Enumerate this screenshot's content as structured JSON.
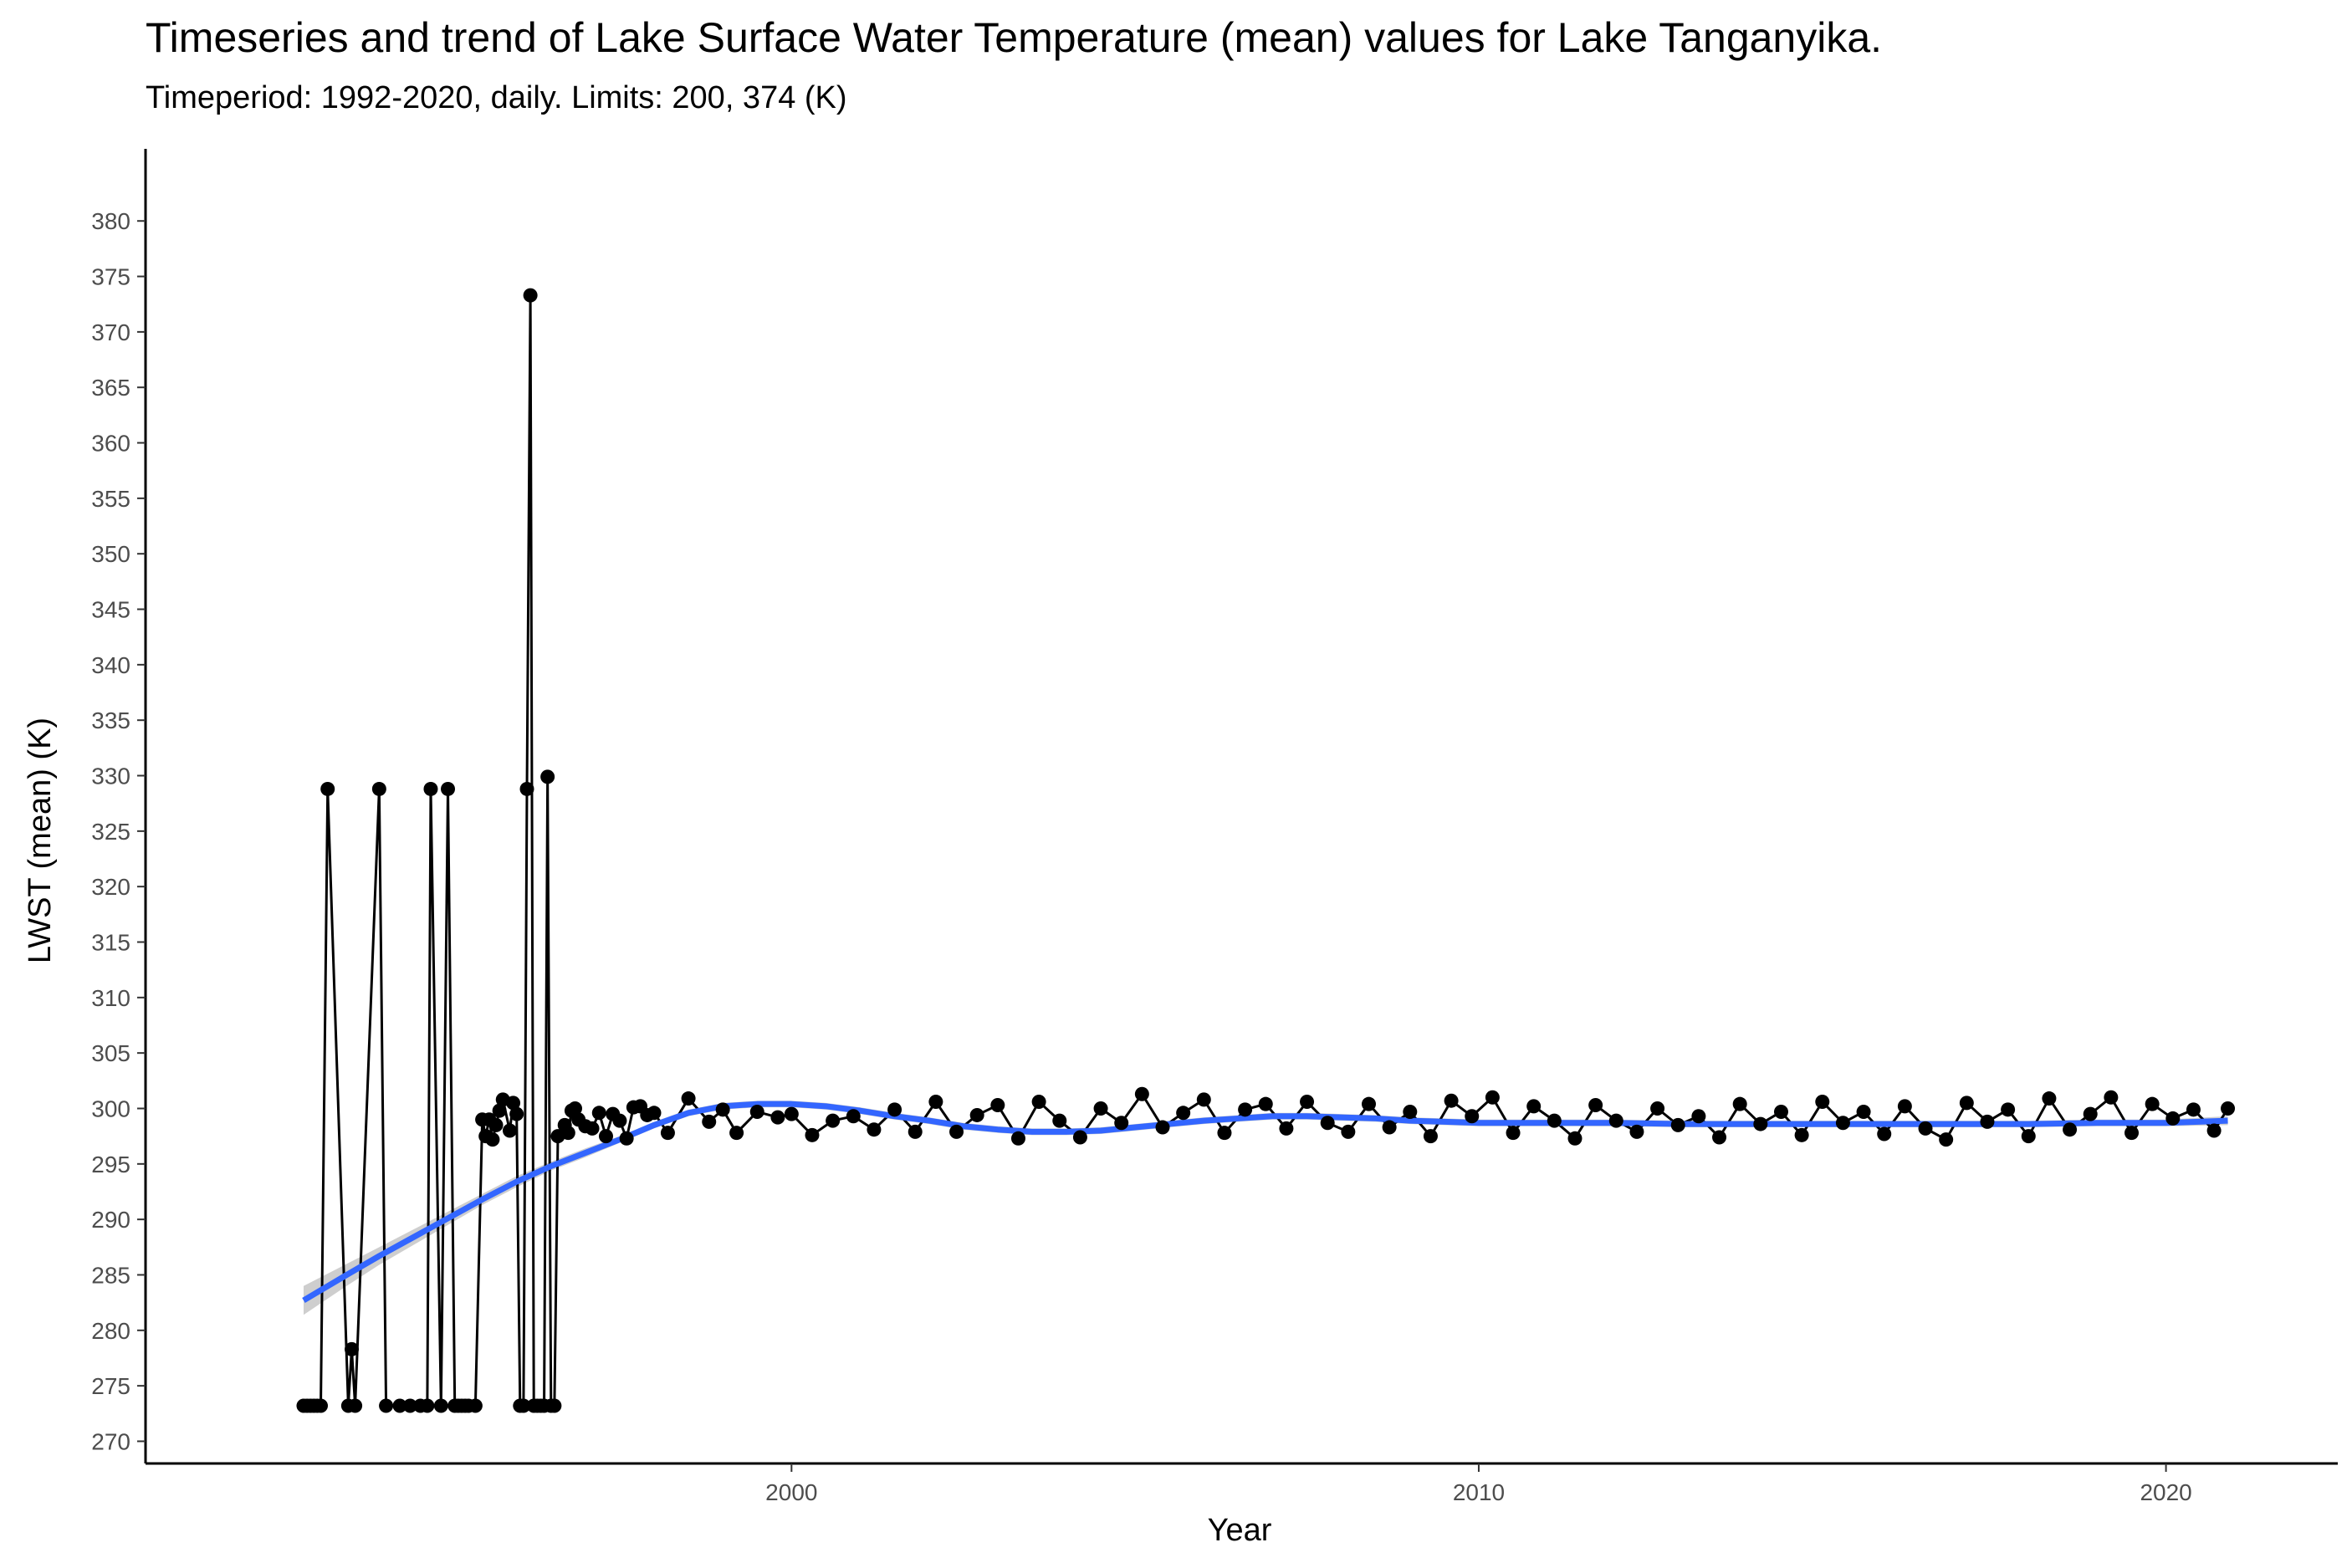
{
  "chart_data": {
    "type": "line",
    "title": "Timeseries and trend of Lake Surface Water Temperature (mean) values for Lake Tanganyika.",
    "subtitle": "Timeperiod: 1992-2020, daily. Limits: 200, 374 (K)",
    "xlabel": "Year",
    "ylabel": "LWST (mean) (K)",
    "xlim": [
      1990.6,
      2022.5
    ],
    "ylim": [
      268,
      386.5
    ],
    "x_ticks": [
      2000,
      2010,
      2020
    ],
    "y_ticks": [
      270,
      275,
      280,
      285,
      290,
      295,
      300,
      305,
      310,
      315,
      320,
      325,
      330,
      335,
      340,
      345,
      350,
      355,
      360,
      365,
      370,
      375,
      380
    ],
    "grid": false,
    "legend": "none",
    "colors": {
      "points": "#000000",
      "line": "#000000",
      "trend": "#3366FF",
      "trend_band": "#BDBDBD"
    },
    "series": [
      {
        "x": [
          1992.9,
          1992.95,
          1993.0,
          1993.05,
          1993.1,
          1993.15,
          1993.25,
          1993.55,
          1993.6,
          1993.65,
          1994.0,
          1994.1,
          1994.3,
          1994.45,
          1994.6,
          1994.7,
          1994.75,
          1994.9,
          1995.0,
          1995.1,
          1995.15,
          1995.2,
          1995.25,
          1995.3,
          1995.4,
          1995.5,
          1995.55,
          1995.6,
          1995.65,
          1995.7,
          1995.75,
          1995.8,
          1995.9,
          1995.95,
          1996.0,
          1996.05,
          1996.1,
          1996.15,
          1996.2,
          1996.25,
          1996.3,
          1996.35,
          1996.4,
          1996.45,
          1996.5,
          1996.55,
          1996.6,
          1996.7,
          1996.75,
          1996.8,
          1996.85,
          1996.9,
          1997.0,
          1997.1,
          1997.2,
          1997.3,
          1997.4,
          1997.5,
          1997.6,
          1997.7,
          1997.8,
          1997.9,
          1998.0,
          1998.2,
          1998.5,
          1998.8,
          1999.0,
          1999.2,
          1999.5,
          1999.8,
          2000.0,
          2000.3,
          2000.6,
          2000.9,
          2001.2,
          2001.5,
          2001.8,
          2002.1,
          2002.4,
          2002.7,
          2003.0,
          2003.3,
          2003.6,
          2003.9,
          2004.2,
          2004.5,
          2004.8,
          2005.1,
          2005.4,
          2005.7,
          2006.0,
          2006.3,
          2006.6,
          2006.9,
          2007.2,
          2007.5,
          2007.8,
          2008.1,
          2008.4,
          2008.7,
          2009.0,
          2009.3,
          2009.6,
          2009.9,
          2010.2,
          2010.5,
          2010.8,
          2011.1,
          2011.4,
          2011.7,
          2012.0,
          2012.3,
          2012.6,
          2012.9,
          2013.2,
          2013.5,
          2013.8,
          2014.1,
          2014.4,
          2014.7,
          2015.0,
          2015.3,
          2015.6,
          2015.9,
          2016.2,
          2016.5,
          2016.8,
          2017.1,
          2017.4,
          2017.7,
          2018.0,
          2018.3,
          2018.6,
          2018.9,
          2019.2,
          2019.5,
          2019.8,
          2020.1,
          2020.4,
          2020.7,
          2020.9
        ],
        "y": [
          273.2,
          273.2,
          273.2,
          273.2,
          273.2,
          273.2,
          328.8,
          273.2,
          278.3,
          273.2,
          328.8,
          273.2,
          273.2,
          273.2,
          273.2,
          273.2,
          328.8,
          273.2,
          328.8,
          273.2,
          273.2,
          273.2,
          273.2,
          273.2,
          273.2,
          299.0,
          297.5,
          299.0,
          297.2,
          298.5,
          299.8,
          300.8,
          298.0,
          300.5,
          299.5,
          273.2,
          273.2,
          328.8,
          373.3,
          273.2,
          273.2,
          273.2,
          273.2,
          329.9,
          273.2,
          273.2,
          297.5,
          298.5,
          297.8,
          299.8,
          300.0,
          299.0,
          298.4,
          298.2,
          299.6,
          297.5,
          299.5,
          298.9,
          297.3,
          300.1,
          300.2,
          299.4,
          299.6,
          297.8,
          300.9,
          298.8,
          299.9,
          297.8,
          299.7,
          299.2,
          299.5,
          297.6,
          298.9,
          299.3,
          298.1,
          299.9,
          297.9,
          300.6,
          297.9,
          299.4,
          300.3,
          297.3,
          300.6,
          298.9,
          297.4,
          300.0,
          298.7,
          301.3,
          298.3,
          299.6,
          300.8,
          297.8,
          299.9,
          300.4,
          298.2,
          300.6,
          298.7,
          297.9,
          300.4,
          298.3,
          299.7,
          297.5,
          300.7,
          299.3,
          301.0,
          297.8,
          300.2,
          298.9,
          297.3,
          300.3,
          298.9,
          297.9,
          300.0,
          298.5,
          299.3,
          297.4,
          300.4,
          298.6,
          299.7,
          297.6,
          300.6,
          298.7,
          299.7,
          297.7,
          300.2,
          298.2,
          297.2,
          300.5,
          298.8,
          299.9,
          297.5,
          300.9,
          298.1,
          299.5,
          301.0,
          297.8,
          300.4,
          299.1,
          299.9,
          298.0,
          300.0
        ]
      }
    ],
    "trend": {
      "x": [
        1992.9,
        1993.5,
        1994.0,
        1994.5,
        1995.0,
        1995.5,
        1996.0,
        1996.5,
        1997.0,
        1997.5,
        1998.0,
        1998.5,
        1999.0,
        1999.5,
        2000.0,
        2000.5,
        2001.0,
        2001.5,
        2002.0,
        2002.5,
        2003.0,
        2003.5,
        2004.0,
        2004.5,
        2005.0,
        2005.5,
        2006.0,
        2006.5,
        2007.0,
        2007.5,
        2008.0,
        2008.5,
        2009.0,
        2009.5,
        2010.0,
        2011.0,
        2012.0,
        2013.0,
        2014.0,
        2015.0,
        2016.0,
        2017.0,
        2018.0,
        2019.0,
        2020.0,
        2020.9
      ],
      "y": [
        282.7,
        284.9,
        286.7,
        288.4,
        290.1,
        291.8,
        293.4,
        294.8,
        296.0,
        297.2,
        298.5,
        299.6,
        300.2,
        300.4,
        300.4,
        300.2,
        299.8,
        299.3,
        298.9,
        298.4,
        298.1,
        297.9,
        297.9,
        298.0,
        298.3,
        298.6,
        298.9,
        299.1,
        299.3,
        299.3,
        299.2,
        299.1,
        298.9,
        298.8,
        298.7,
        298.7,
        298.7,
        298.6,
        298.6,
        298.6,
        298.6,
        298.6,
        298.6,
        298.7,
        298.7,
        298.9
      ],
      "band": [
        1.3,
        1.0,
        0.8,
        0.7,
        0.6,
        0.5,
        0.5,
        0.4,
        0.4,
        0.3,
        0.3,
        0.3,
        0.3,
        0.3,
        0.3,
        0.3,
        0.3,
        0.3,
        0.3,
        0.3,
        0.3,
        0.3,
        0.3,
        0.3,
        0.3,
        0.3,
        0.3,
        0.3,
        0.3,
        0.3,
        0.3,
        0.3,
        0.3,
        0.3,
        0.3,
        0.3,
        0.3,
        0.3,
        0.3,
        0.3,
        0.3,
        0.3,
        0.3,
        0.3,
        0.3,
        0.4
      ]
    }
  }
}
